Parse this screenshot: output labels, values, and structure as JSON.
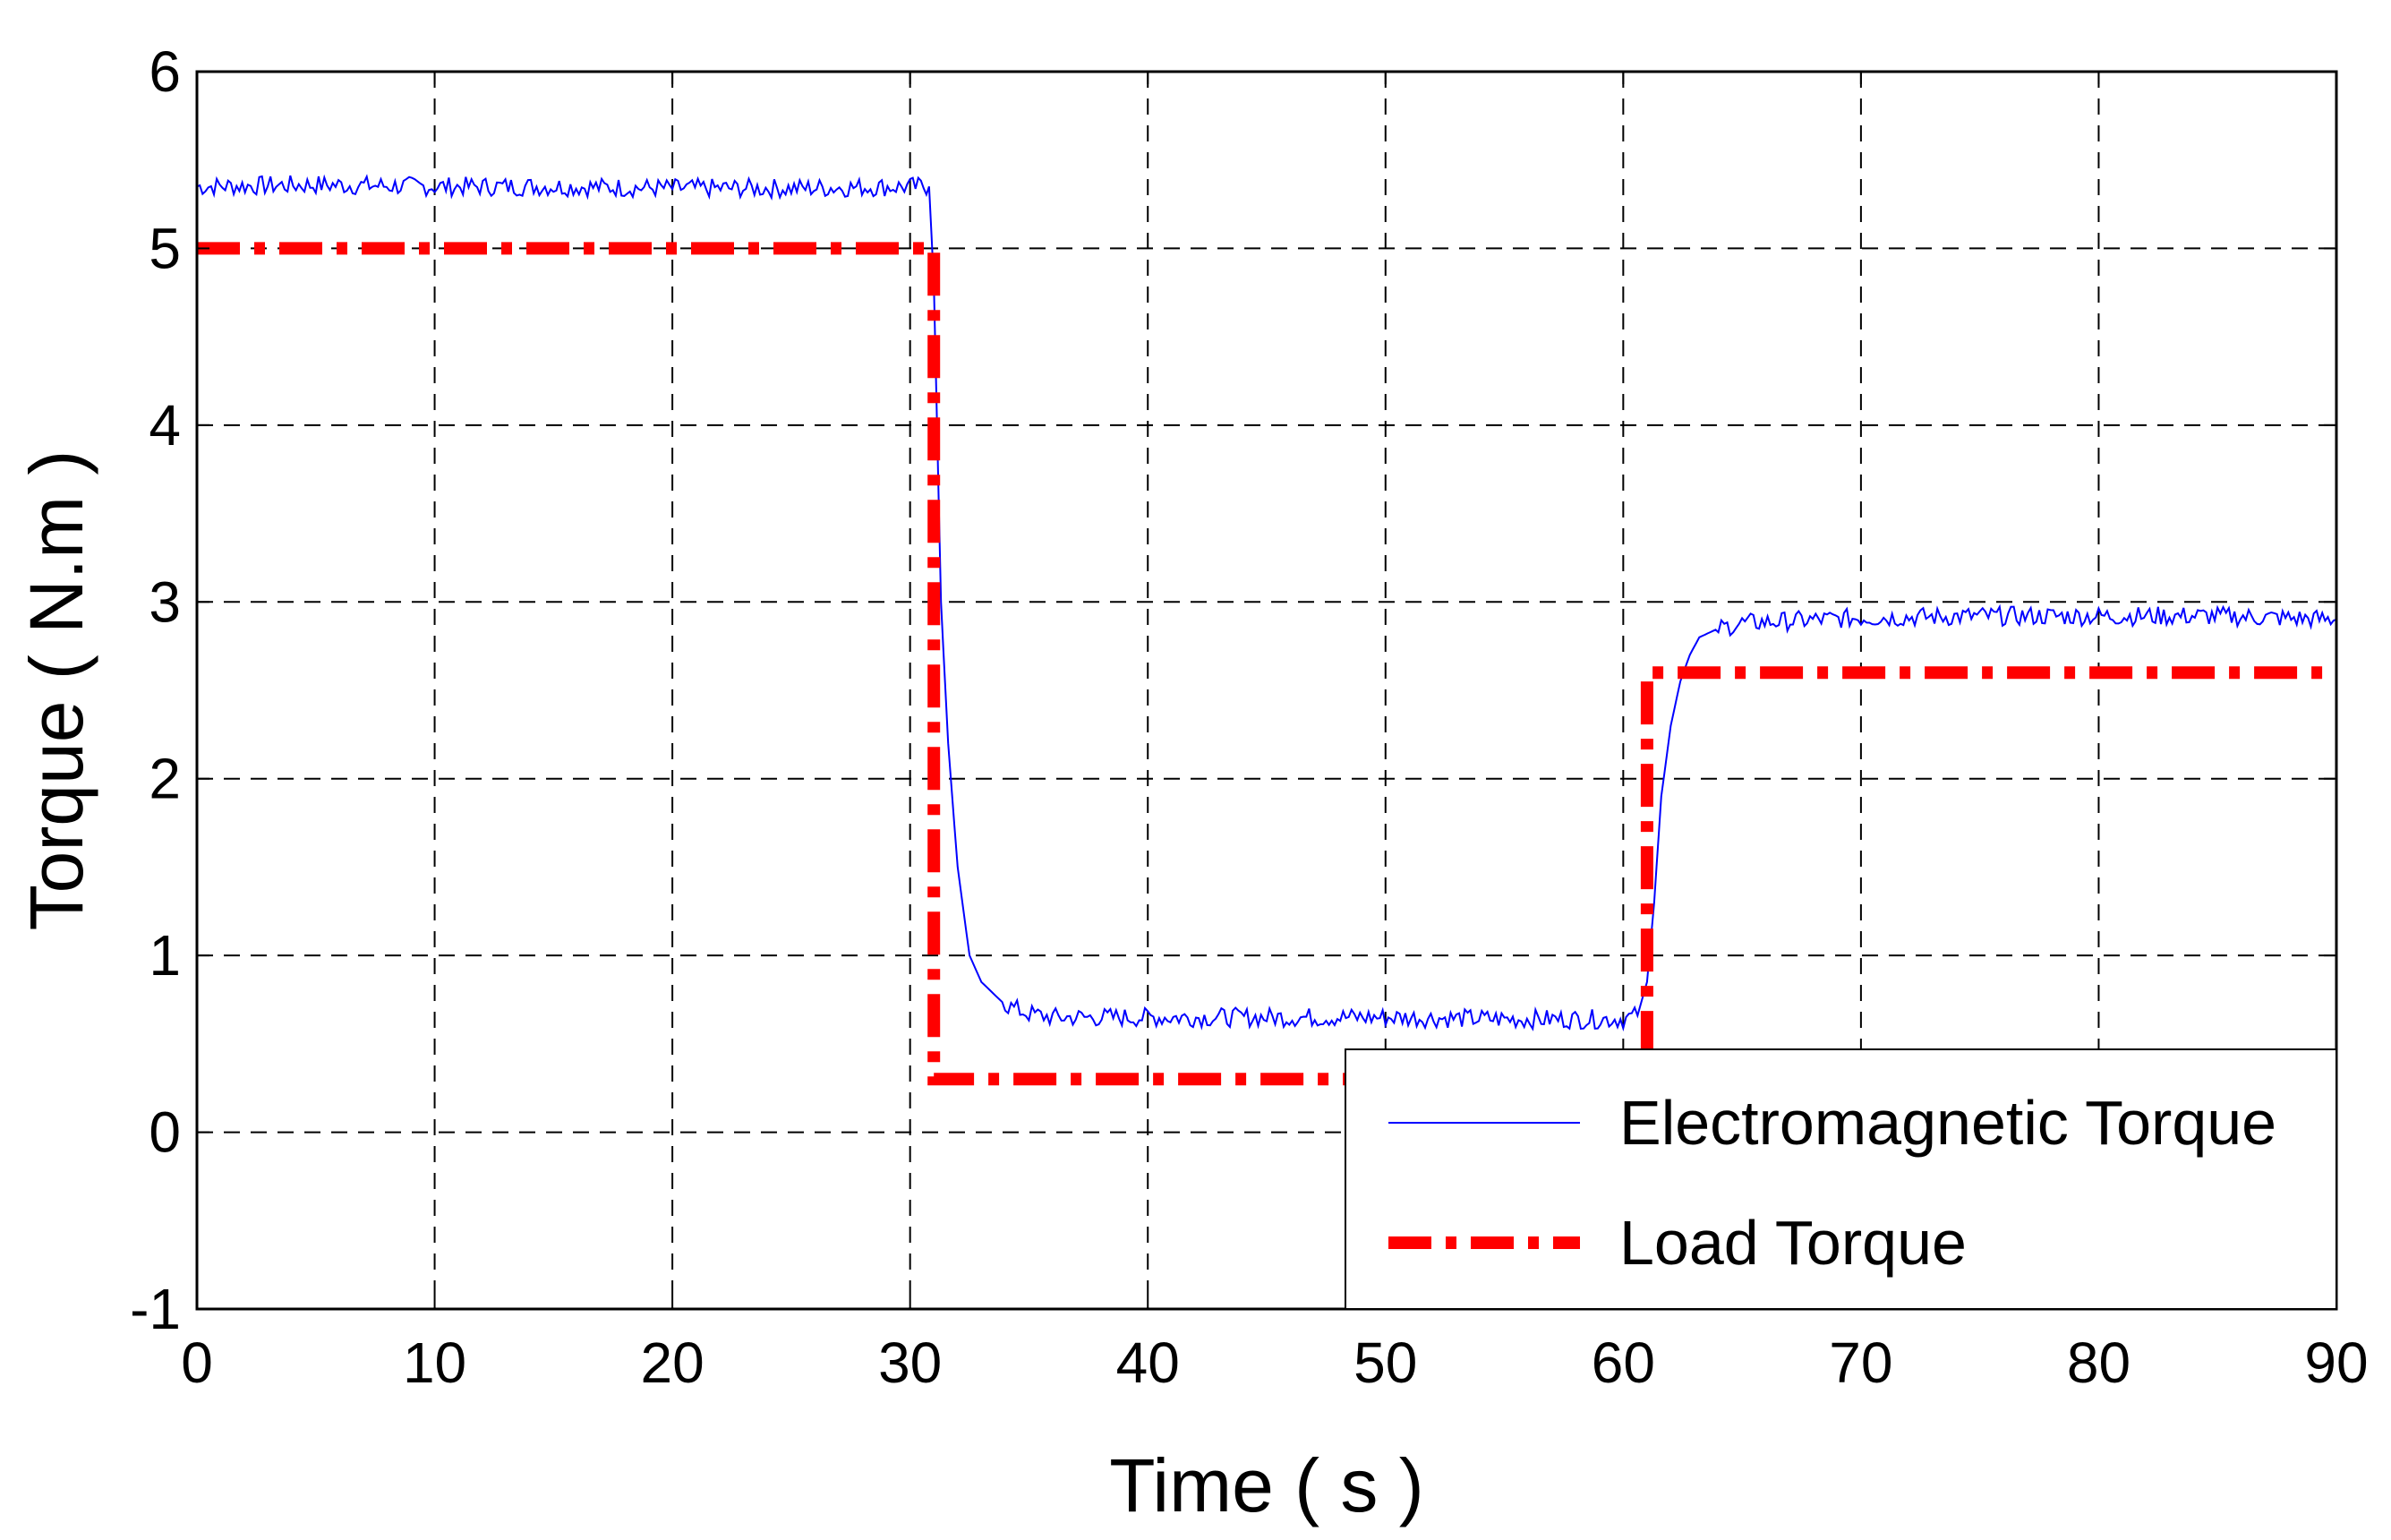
{
  "chart_data": {
    "type": "line",
    "title": "",
    "xlabel": "Time ( s )",
    "ylabel": "Torque ( N.m )",
    "xlim": [
      0,
      90
    ],
    "ylim": [
      -1,
      6
    ],
    "xticks": [
      0,
      10,
      20,
      30,
      40,
      50,
      60,
      70,
      80,
      90
    ],
    "yticks": [
      -1,
      0,
      1,
      2,
      3,
      4,
      5,
      6
    ],
    "xtick_labels": [
      "0",
      "10",
      "20",
      "30",
      "40",
      "50",
      "60",
      "70",
      "80",
      "90"
    ],
    "ytick_labels": [
      "-1",
      "0",
      "1",
      "2",
      "3",
      "4",
      "5",
      "6"
    ],
    "grid": true,
    "legend": {
      "position": "bottom-right"
    },
    "series": [
      {
        "name": "Electromagnetic Torque",
        "color": "#0000ff",
        "style": "solid",
        "x": [
          0,
          5,
          10,
          15,
          20,
          25,
          30,
          30.8,
          31.0,
          31.3,
          31.6,
          32.0,
          32.5,
          33.0,
          34.0,
          35.0,
          36.0,
          40,
          45,
          50,
          55,
          60,
          60.6,
          61.0,
          61.3,
          61.6,
          62.0,
          62.4,
          62.8,
          63.2,
          64.0,
          65,
          70,
          75,
          80,
          85,
          90
        ],
        "y": [
          5.35,
          5.36,
          5.35,
          5.35,
          5.34,
          5.34,
          5.35,
          5.35,
          4.8,
          3.0,
          2.2,
          1.5,
          1.0,
          0.85,
          0.72,
          0.67,
          0.65,
          0.65,
          0.65,
          0.65,
          0.64,
          0.64,
          0.66,
          0.85,
          1.3,
          1.9,
          2.3,
          2.55,
          2.7,
          2.8,
          2.85,
          2.88,
          2.91,
          2.92,
          2.92,
          2.92,
          2.9
        ]
      },
      {
        "name": "Load Torque",
        "color": "#ff0000",
        "style": "dash-dot",
        "x": [
          0,
          31,
          31,
          61,
          61,
          90
        ],
        "y": [
          5.0,
          5.0,
          0.3,
          0.3,
          2.6,
          2.6
        ]
      }
    ]
  }
}
